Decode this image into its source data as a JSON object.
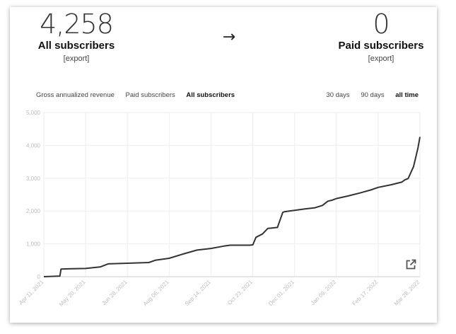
{
  "stats": {
    "left": {
      "value": "4,258",
      "label": "All subscribers",
      "export_label": "[export]"
    },
    "arrow": "→",
    "right": {
      "value": "0",
      "label": "Paid subscribers",
      "export_label": "[export]"
    }
  },
  "metric_tabs": [
    {
      "label": "Gross annualized revenue",
      "active": false
    },
    {
      "label": "Paid subscribers",
      "active": false
    },
    {
      "label": "All subscribers",
      "active": true
    }
  ],
  "range_tabs": [
    {
      "label": "30 days",
      "active": false
    },
    {
      "label": "90 days",
      "active": false
    },
    {
      "label": "all time",
      "active": true
    }
  ],
  "icons": {
    "external_link": "external-link-icon"
  },
  "colors": {
    "line": "#333333",
    "grid": "#eeeeee",
    "axis_text": "#bbbbbb"
  },
  "chart_data": {
    "type": "line",
    "title": "",
    "xlabel": "",
    "ylabel": "",
    "ylim": [
      0,
      5000
    ],
    "yticks": [
      0,
      1000,
      2000,
      3000,
      4000,
      5000
    ],
    "ytick_labels": [
      "0",
      "1,000",
      "2,000",
      "3,000",
      "4,000",
      "5,000"
    ],
    "xlim": [
      "2021-04-11",
      "2022-03-28"
    ],
    "xticks": [
      "2021-04-11",
      "2021-05-20",
      "2021-06-28",
      "2021-08-06",
      "2021-09-14",
      "2021-10-23",
      "2021-12-01",
      "2022-01-09",
      "2022-02-17",
      "2022-03-28"
    ],
    "xtick_labels": [
      "Apr 11, 2021",
      "May 20, 2021",
      "Jun 28, 2021",
      "Aug 06, 2021",
      "Sep 14, 2021",
      "Oct 23, 2021",
      "Dec 01, 2021",
      "Jan 09, 2022",
      "Feb 17, 2022",
      "Mar 28, 2022"
    ],
    "grid": true,
    "legend": "none",
    "series": [
      {
        "x": [
          "2021-04-11",
          "2021-04-26",
          "2021-04-27",
          "2021-05-04",
          "2021-05-20",
          "2021-06-03",
          "2021-06-10",
          "2021-06-28",
          "2021-07-18",
          "2021-07-24",
          "2021-08-06",
          "2021-08-20",
          "2021-09-01",
          "2021-09-14",
          "2021-09-26",
          "2021-10-02",
          "2021-10-10",
          "2021-10-20",
          "2021-10-23",
          "2021-10-26",
          "2021-11-01",
          "2021-11-06",
          "2021-11-15",
          "2021-11-20",
          "2021-11-22",
          "2021-11-26",
          "2021-12-01",
          "2021-12-10",
          "2021-12-20",
          "2021-12-27",
          "2022-01-01",
          "2022-01-05",
          "2022-01-09",
          "2022-01-20",
          "2022-01-31",
          "2022-02-10",
          "2022-02-17",
          "2022-03-01",
          "2022-03-11",
          "2022-03-14",
          "2022-03-17",
          "2022-03-22",
          "2022-03-26",
          "2022-03-28"
        ],
        "y": [
          0,
          20,
          230,
          240,
          250,
          300,
          390,
          410,
          430,
          500,
          560,
          700,
          810,
          860,
          930,
          960,
          960,
          960,
          970,
          1200,
          1300,
          1470,
          1500,
          1960,
          1980,
          2000,
          2020,
          2060,
          2100,
          2170,
          2300,
          2330,
          2380,
          2460,
          2550,
          2640,
          2720,
          2800,
          2880,
          2950,
          2990,
          3350,
          3900,
          4258
        ]
      }
    ]
  }
}
